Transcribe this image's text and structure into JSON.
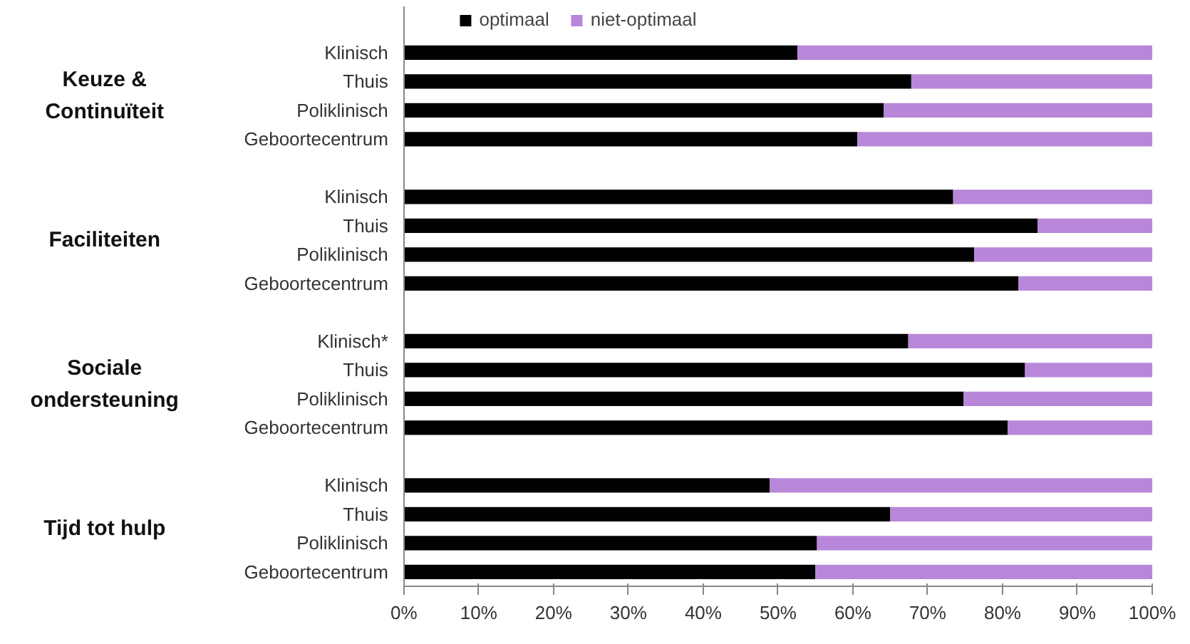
{
  "chart_data": {
    "type": "bar",
    "orientation": "horizontal",
    "stacked": true,
    "categories": [
      "Klinisch",
      "Thuis",
      "Poliklinisch",
      "Geboortecentrum",
      null,
      "Klinisch",
      "Thuis",
      "Poliklinisch",
      "Geboortecentrum",
      null,
      "Klinisch*",
      "Thuis",
      "Poliklinisch",
      "Geboortecentrum",
      null,
      "Klinisch",
      "Thuis",
      "Poliklinisch",
      "Geboortecentrum"
    ],
    "series": [
      {
        "name": "optimaal",
        "color": "#000000",
        "values": [
          52.6,
          67.8,
          64.1,
          60.6,
          null,
          73.4,
          84.7,
          76.2,
          82.1,
          null,
          67.4,
          83.0,
          74.8,
          80.7,
          null,
          48.9,
          65.0,
          55.2,
          55.0
        ]
      },
      {
        "name": "niet-optimaal",
        "color": "#b987d9",
        "values": [
          47.4,
          32.2,
          35.9,
          39.4,
          null,
          26.6,
          15.3,
          23.8,
          17.9,
          null,
          32.6,
          17.0,
          25.2,
          19.3,
          null,
          51.1,
          35.0,
          44.8,
          45.0
        ]
      }
    ],
    "annotations": [
      "Keuze & Continuïteit",
      "Faciliteiten",
      "Sociale ondersteuning",
      "Tijd tot hulp"
    ],
    "xlim": [
      0,
      100
    ],
    "xticks": [
      {
        "value": 0,
        "label": "0%"
      },
      {
        "value": 10,
        "label": "10%"
      },
      {
        "value": 20,
        "label": "20%"
      },
      {
        "value": 30,
        "label": "30%"
      },
      {
        "value": 40,
        "label": "40%"
      },
      {
        "value": 50,
        "label": "50%"
      },
      {
        "value": 60,
        "label": "60%"
      },
      {
        "value": 70,
        "label": "70%"
      },
      {
        "value": 80,
        "label": "80%"
      },
      {
        "value": 90,
        "label": "90%"
      },
      {
        "value": 100,
        "label": "100%"
      }
    ],
    "legend": "top"
  }
}
